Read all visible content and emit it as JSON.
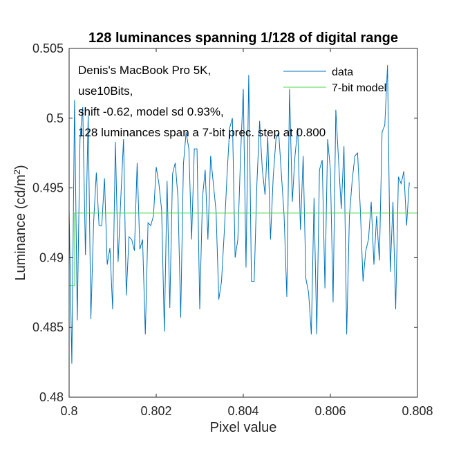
{
  "chart_data": {
    "type": "line",
    "title": "128 luminances spanning 1/128 of digital range",
    "xlabel": "Pixel value",
    "ylabel": "Luminance (cd/m²)",
    "xlim": [
      0.8,
      0.808
    ],
    "ylim": [
      0.48,
      0.505
    ],
    "xticks": [
      0.8,
      0.802,
      0.804,
      0.806,
      0.808
    ],
    "xtick_labels": [
      "0.8",
      "0.802",
      "0.804",
      "0.806",
      "0.808"
    ],
    "yticks": [
      0.48,
      0.485,
      0.49,
      0.495,
      0.5,
      0.505
    ],
    "ytick_labels": [
      "0.48",
      "0.485",
      "0.49",
      "0.495",
      "0.5",
      "0.505"
    ],
    "grid": false,
    "legend": "top-right",
    "annotations": [
      "Denis's MacBook Pro 5K,",
      "use10Bits,",
      "shift -0.62, model sd 0.93%,",
      "128 luminances span a 7-bit prec. step at 0.800"
    ],
    "series": [
      {
        "name": "data",
        "color": "#0072bd",
        "x_start": 0.8,
        "x_step": 6.25e-05,
        "values": [
          0.4935,
          0.4824,
          0.5013,
          0.4855,
          0.4985,
          0.5008,
          0.4902,
          0.5002,
          0.4856,
          0.4925,
          0.4961,
          0.4923,
          0.4923,
          0.4957,
          0.4895,
          0.4907,
          0.4863,
          0.4983,
          0.4897,
          0.4943,
          0.4985,
          0.4873,
          0.4915,
          0.4913,
          0.4905,
          0.4968,
          0.4906,
          0.4913,
          0.4845,
          0.4925,
          0.4923,
          0.493,
          0.4965,
          0.4953,
          0.4934,
          0.4847,
          0.4955,
          0.4864,
          0.496,
          0.4968,
          0.4943,
          0.4857,
          0.4967,
          0.499,
          0.4978,
          0.4913,
          0.4978,
          0.4978,
          0.4863,
          0.4943,
          0.4963,
          0.4913,
          0.4973,
          0.4953,
          0.4933,
          0.487,
          0.4883,
          0.4918,
          0.4958,
          0.4993,
          0.5,
          0.49,
          0.4913,
          0.4973,
          0.5021,
          0.4893,
          0.5031,
          0.4883,
          0.4883,
          0.4953,
          0.4998,
          0.4963,
          0.4945,
          0.4987,
          0.4913,
          0.4958,
          0.4985,
          0.499,
          0.496,
          0.493,
          0.4872,
          0.5021,
          0.494,
          0.4973,
          0.4993,
          0.492,
          0.4973,
          0.4885,
          0.4875,
          0.4845,
          0.4943,
          0.4845,
          0.4963,
          0.497,
          0.4878,
          0.4985,
          0.4963,
          0.4868,
          0.5006,
          0.497,
          0.4935,
          0.498,
          0.4845,
          0.493,
          0.4955,
          0.4973,
          0.4975,
          0.4935,
          0.4883,
          0.4905,
          0.4913,
          0.494,
          0.4895,
          0.493,
          0.4898,
          0.499,
          0.4995,
          0.5038,
          0.489,
          0.494,
          0.4863,
          0.4958,
          0.4953,
          0.4962,
          0.4923,
          0.4954
        ]
      },
      {
        "name": "7-bit model",
        "color": "#4ad94a",
        "segments": [
          {
            "x": [
              0.8,
              0.8000625,
              0.8000625,
              0.800125,
              0.800125,
              0.808
            ],
            "y": [
              0.488,
              0.488,
              0.488,
              0.488,
              0.4932,
              0.4932
            ]
          }
        ]
      }
    ]
  }
}
